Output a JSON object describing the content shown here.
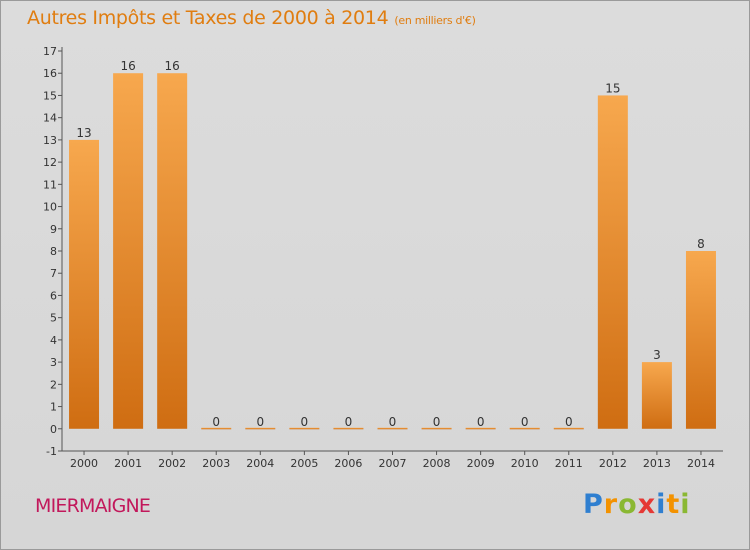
{
  "chart_data": {
    "type": "bar",
    "title": "Autres Impôts et Taxes de 2000 à 2014",
    "subtitle": "(en milliers d'€)",
    "categories": [
      "2000",
      "2001",
      "2002",
      "2003",
      "2004",
      "2005",
      "2006",
      "2007",
      "2008",
      "2009",
      "2010",
      "2011",
      "2012",
      "2013",
      "2014"
    ],
    "values": [
      13,
      16,
      16,
      0,
      0,
      0,
      0,
      0,
      0,
      0,
      0,
      0,
      15,
      3,
      8
    ],
    "data_labels": [
      "13",
      "16",
      "16",
      "0",
      "0",
      "0",
      "0",
      "0",
      "0",
      "0",
      "0",
      "0",
      "15",
      "3",
      "8"
    ],
    "ylim": [
      -1,
      17
    ],
    "yticks": [
      "-1",
      "0",
      "1",
      "2",
      "3",
      "4",
      "5",
      "6",
      "7",
      "8",
      "9",
      "10",
      "11",
      "12",
      "13",
      "14",
      "15",
      "16",
      "17"
    ],
    "xlabel": "",
    "ylabel": "",
    "grid": false,
    "bar_color": "#e8892a",
    "bar_color_light": "#f7a84e",
    "bar_color_dark": "#cf6d12"
  },
  "commune": "MIERMAIGNE",
  "logo": {
    "letters": [
      "P",
      "r",
      "o",
      "x",
      "i",
      "t",
      "i"
    ],
    "colors": [
      "#2f7fd0",
      "#f39200",
      "#8ab833",
      "#e53935",
      "#2f7fd0",
      "#f39200",
      "#8ab833"
    ]
  }
}
